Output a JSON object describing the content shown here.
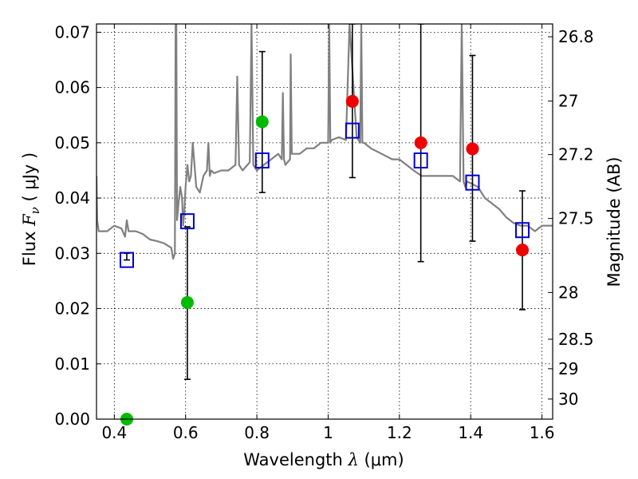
{
  "chart_data": {
    "type": "scatter",
    "xlabel": {
      "prefix": "Wavelength  ",
      "symbol": "λ",
      "suffix": " (μm)"
    },
    "ylabel": {
      "prefix": "Flux  ",
      "symbol": "F",
      "subscript": "ν",
      "suffix": "  ( μJy )"
    },
    "y2label": "Magnitude (AB)",
    "xlim": [
      0.35,
      1.63
    ],
    "ylim": [
      0.0,
      0.0715
    ],
    "xticks": [
      "0.4",
      "0.6",
      "0.8",
      "1",
      "1.2",
      "1.4",
      "1.6"
    ],
    "xtick_values": [
      0.4,
      0.6,
      0.8,
      1.0,
      1.2,
      1.4,
      1.6
    ],
    "yticks": [
      "0.00",
      "0.01",
      "0.02",
      "0.03",
      "0.04",
      "0.05",
      "0.06",
      "0.07"
    ],
    "ytick_values": [
      0.0,
      0.01,
      0.02,
      0.03,
      0.04,
      0.05,
      0.06,
      0.07
    ],
    "y2ticks": [
      {
        "label": "26.8",
        "mag": 26.8
      },
      {
        "label": "27",
        "mag": 27.0
      },
      {
        "label": "27.2",
        "mag": 27.2
      },
      {
        "label": "27.5",
        "mag": 27.5
      },
      {
        "label": "28",
        "mag": 28.0
      },
      {
        "label": "28.5",
        "mag": 28.5
      },
      {
        "label": "29",
        "mag": 29.0
      },
      {
        "label": "30",
        "mag": 30.0
      }
    ],
    "grid": true,
    "colors": {
      "model": "#808080",
      "open_square": "#0000cc",
      "green_point": "#00bb00",
      "red_point": "#ee0000",
      "errorbar": "#000000"
    },
    "model_spectrum": {
      "name": "",
      "x": [
        0.35,
        0.352,
        0.356,
        0.36,
        0.38,
        0.4,
        0.42,
        0.43,
        0.435,
        0.44,
        0.46,
        0.48,
        0.5,
        0.52,
        0.54,
        0.56,
        0.565,
        0.57,
        0.572,
        0.574,
        0.576,
        0.58,
        0.585,
        0.59,
        0.593,
        0.596,
        0.6,
        0.605,
        0.61,
        0.615,
        0.62,
        0.63,
        0.64,
        0.65,
        0.66,
        0.664,
        0.668,
        0.672,
        0.68,
        0.7,
        0.72,
        0.74,
        0.745,
        0.75,
        0.76,
        0.78,
        0.785,
        0.79,
        0.8,
        0.82,
        0.84,
        0.86,
        0.87,
        0.873,
        0.876,
        0.88,
        0.893,
        0.895,
        0.898,
        0.9,
        0.92,
        0.94,
        0.96,
        0.98,
        1.0,
        1.003,
        1.006,
        1.01,
        1.03,
        1.05,
        1.06,
        1.08,
        1.09,
        1.093,
        1.096,
        1.1,
        1.12,
        1.15,
        1.18,
        1.2,
        1.24,
        1.262,
        1.28,
        1.32,
        1.35,
        1.37,
        1.375,
        1.38,
        1.385,
        1.39,
        1.42,
        1.44,
        1.46,
        1.48,
        1.5,
        1.52,
        1.54,
        1.56,
        1.58,
        1.6,
        1.62,
        1.63
      ],
      "y": [
        0.044,
        0.036,
        0.034,
        0.034,
        0.034,
        0.035,
        0.0345,
        0.033,
        0.036,
        0.034,
        0.034,
        0.0335,
        0.0325,
        0.0322,
        0.0318,
        0.031,
        0.029,
        0.03,
        0.0715,
        0.0715,
        0.036,
        0.039,
        0.042,
        0.04,
        0.035,
        0.037,
        0.042,
        0.046,
        0.043,
        0.044,
        0.05,
        0.042,
        0.041,
        0.044,
        0.045,
        0.05,
        0.044,
        0.045,
        0.0445,
        0.045,
        0.045,
        0.046,
        0.062,
        0.046,
        0.045,
        0.0465,
        0.0715,
        0.046,
        0.045,
        0.046,
        0.047,
        0.048,
        0.047,
        0.059,
        0.047,
        0.046,
        0.047,
        0.066,
        0.048,
        0.048,
        0.048,
        0.049,
        0.049,
        0.05,
        0.05,
        0.0715,
        0.05,
        0.0505,
        0.051,
        0.0505,
        0.0715,
        0.051,
        0.05,
        0.0715,
        0.05,
        0.05,
        0.049,
        0.048,
        0.047,
        0.047,
        0.045,
        0.044,
        0.044,
        0.044,
        0.044,
        0.043,
        0.0715,
        0.043,
        0.042,
        0.043,
        0.042,
        0.04,
        0.039,
        0.038,
        0.0365,
        0.0355,
        0.035,
        0.035,
        0.034,
        0.035,
        0.035,
        0.035
      ]
    },
    "open_squares": [
      {
        "x": 0.435,
        "y": 0.0288,
        "yerr_low": 0.0288,
        "yerr_high": 0.03
      },
      {
        "x": 0.605,
        "y": 0.0358,
        "yerr_low": 0.0072,
        "yerr_high": 0.0348
      },
      {
        "x": 0.815,
        "y": 0.0468,
        "yerr_low": 0.041,
        "yerr_high": 0.0665
      },
      {
        "x": 1.068,
        "y": 0.0522,
        "yerr_low": 0.0437,
        "yerr_high": 0.0715
      },
      {
        "x": 1.26,
        "y": 0.0468,
        "yerr_low": 0.0285,
        "yerr_high": 0.0715
      },
      {
        "x": 1.405,
        "y": 0.0428,
        "yerr_low": 0.0322,
        "yerr_high": 0.0658
      },
      {
        "x": 1.545,
        "y": 0.0342,
        "yerr_low": 0.0198,
        "yerr_high": 0.0413
      }
    ],
    "green_points": [
      {
        "x": 0.435,
        "y": 0.0
      },
      {
        "x": 0.605,
        "y": 0.0211
      },
      {
        "x": 0.815,
        "y": 0.0538
      }
    ],
    "red_points": [
      {
        "x": 1.068,
        "y": 0.0575
      },
      {
        "x": 1.26,
        "y": 0.05
      },
      {
        "x": 1.405,
        "y": 0.0489
      },
      {
        "x": 1.545,
        "y": 0.0306
      }
    ]
  }
}
